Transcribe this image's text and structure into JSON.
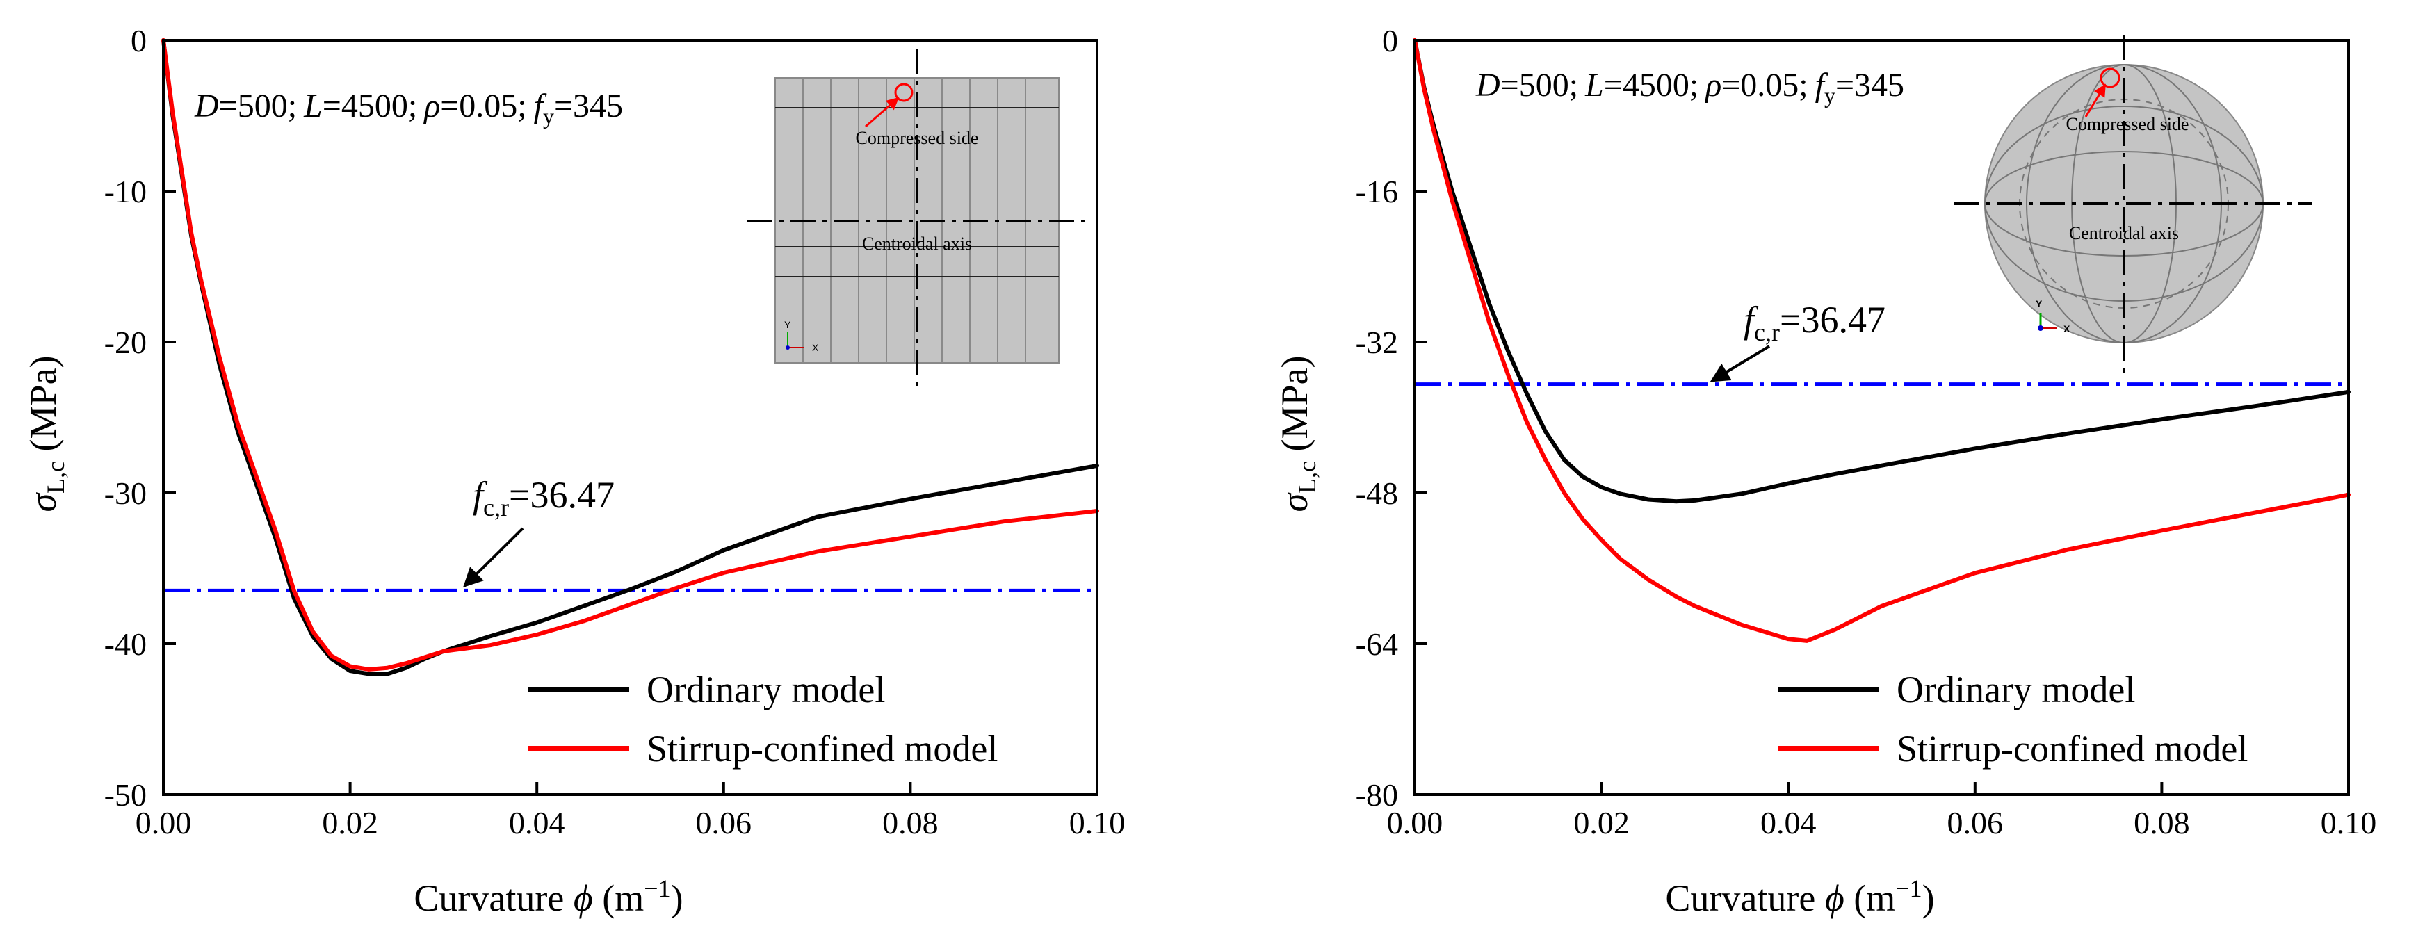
{
  "chart_data": [
    {
      "type": "line",
      "panel": "left",
      "title": "",
      "xlabel": "Curvature ϕ (m⁻¹)",
      "xlabel_parts": {
        "prefix": "Curvature ",
        "symbol": "ϕ",
        "unit_open": " (m",
        "unit_exp": "−1",
        "unit_close": ")"
      },
      "ylabel_parts": {
        "symbol": "σ",
        "subscript": "L,c",
        "unit": " (MPa)"
      },
      "xlim": [
        0,
        0.1
      ],
      "ylim": [
        -50,
        0
      ],
      "x_ticks": [
        0.0,
        0.02,
        0.04,
        0.06,
        0.08,
        0.1
      ],
      "x_tick_labels": [
        "0.00",
        "0.02",
        "0.04",
        "0.06",
        "0.08",
        "0.10"
      ],
      "y_ticks": [
        0,
        -10,
        -20,
        -30,
        -40,
        -50
      ],
      "y_tick_labels": [
        "0",
        "-10",
        "-20",
        "-30",
        "-40",
        "-50"
      ],
      "grid": false,
      "legend_position": "bottom-right",
      "params": {
        "D": "D",
        "D_val": "=500;",
        "L": "L",
        "L_val": "=4500;",
        "rho": "ρ",
        "rho_val": "=0.05;",
        "f": "f",
        "f_sub": "y",
        "f_val": "=345"
      },
      "reference_line": {
        "value": -36.47,
        "color": "#0000ff",
        "label_symbol": "f",
        "label_sub": "c,r",
        "label_val": "=36.47",
        "arrow_to_x": 0.032
      },
      "inset": {
        "kind": "rect",
        "labels": [
          "Compressed side",
          "Centroidal axis"
        ],
        "axis_labels": [
          "Y",
          "X"
        ]
      },
      "series": [
        {
          "name": "Ordinary model",
          "color": "#000000",
          "x": [
            0,
            0.001,
            0.002,
            0.003,
            0.004,
            0.006,
            0.008,
            0.01,
            0.012,
            0.014,
            0.016,
            0.018,
            0.02,
            0.022,
            0.024,
            0.026,
            0.028,
            0.03,
            0.035,
            0.04,
            0.045,
            0.05,
            0.055,
            0.06,
            0.07,
            0.08,
            0.09,
            0.1
          ],
          "y": [
            0,
            -5,
            -9,
            -13,
            -16,
            -21.5,
            -26,
            -29.5,
            -33,
            -37,
            -39.5,
            -41,
            -41.8,
            -42,
            -42,
            -41.6,
            -41,
            -40.5,
            -39.5,
            -38.6,
            -37.5,
            -36.4,
            -35.2,
            -33.8,
            -31.6,
            -30.4,
            -29.3,
            -28.2
          ]
        },
        {
          "name": "Stirrup-confined model",
          "color": "#ff0000",
          "x": [
            0,
            0.001,
            0.002,
            0.003,
            0.004,
            0.006,
            0.008,
            0.01,
            0.012,
            0.014,
            0.016,
            0.018,
            0.02,
            0.022,
            0.024,
            0.026,
            0.028,
            0.03,
            0.035,
            0.04,
            0.045,
            0.05,
            0.055,
            0.06,
            0.07,
            0.08,
            0.09,
            0.1
          ],
          "y": [
            0,
            -4.8,
            -8.8,
            -12.8,
            -15.8,
            -21,
            -25.5,
            -29,
            -32.5,
            -36.5,
            -39.2,
            -40.8,
            -41.5,
            -41.7,
            -41.6,
            -41.3,
            -40.9,
            -40.5,
            -40.1,
            -39.4,
            -38.5,
            -37.4,
            -36.3,
            -35.3,
            -33.9,
            -32.9,
            -31.9,
            -31.2
          ]
        }
      ]
    },
    {
      "type": "line",
      "panel": "right",
      "title": "",
      "xlabel": "Curvature ϕ (m⁻¹)",
      "xlabel_parts": {
        "prefix": "Curvature ",
        "symbol": "ϕ",
        "unit_open": " (m",
        "unit_exp": "−1",
        "unit_close": ")"
      },
      "ylabel_parts": {
        "symbol": "σ",
        "subscript": "L,c",
        "unit": " (MPa)"
      },
      "xlim": [
        0,
        0.1
      ],
      "ylim": [
        -80,
        0
      ],
      "x_ticks": [
        0.0,
        0.02,
        0.04,
        0.06,
        0.08,
        0.1
      ],
      "x_tick_labels": [
        "0.00",
        "0.02",
        "0.04",
        "0.06",
        "0.08",
        "0.10"
      ],
      "y_ticks": [
        0,
        -16,
        -32,
        -48,
        -64,
        -80
      ],
      "y_tick_labels": [
        "0",
        "-16",
        "-32",
        "-48",
        "-64",
        "-80"
      ],
      "grid": false,
      "legend_position": "bottom-right",
      "params": {
        "D": "D",
        "D_val": "=500;",
        "L": "L",
        "L_val": "=4500;",
        "rho": "ρ",
        "rho_val": "=0.05;",
        "f": "f",
        "f_sub": "y",
        "f_val": "=345"
      },
      "reference_line": {
        "value": -36.47,
        "color": "#0000ff",
        "label_symbol": "f",
        "label_sub": "c,r",
        "label_val": "=36.47",
        "arrow_to_x": 0.031
      },
      "inset": {
        "kind": "circle",
        "labels": [
          "Compressed side",
          "Centroidal axis"
        ],
        "axis_labels": [
          "Y",
          "X"
        ]
      },
      "series": [
        {
          "name": "Ordinary model",
          "color": "#000000",
          "x": [
            0,
            0.001,
            0.002,
            0.004,
            0.006,
            0.008,
            0.01,
            0.012,
            0.014,
            0.016,
            0.018,
            0.02,
            0.022,
            0.025,
            0.028,
            0.03,
            0.035,
            0.04,
            0.045,
            0.05,
            0.06,
            0.07,
            0.08,
            0.09,
            0.1
          ],
          "y": [
            0,
            -5,
            -9,
            -16,
            -22,
            -28,
            -33,
            -37.5,
            -41.5,
            -44.5,
            -46.3,
            -47.4,
            -48.1,
            -48.7,
            -48.9,
            -48.8,
            -48.1,
            -47,
            -46,
            -45.1,
            -43.3,
            -41.7,
            -40.2,
            -38.8,
            -37.3
          ]
        },
        {
          "name": "Stirrup-confined model",
          "color": "#ff0000",
          "x": [
            0,
            0.001,
            0.002,
            0.004,
            0.006,
            0.008,
            0.01,
            0.012,
            0.014,
            0.016,
            0.018,
            0.02,
            0.022,
            0.025,
            0.028,
            0.03,
            0.035,
            0.04,
            0.042,
            0.045,
            0.05,
            0.06,
            0.07,
            0.08,
            0.09,
            0.1
          ],
          "y": [
            0,
            -5.2,
            -9.5,
            -17,
            -23.5,
            -30,
            -35.5,
            -40.5,
            -44.5,
            -48,
            -50.8,
            -53,
            -55,
            -57.2,
            -59,
            -60,
            -62,
            -63.5,
            -63.7,
            -62.5,
            -60,
            -56.5,
            -54,
            -52,
            -50.1,
            -48.2
          ]
        }
      ]
    }
  ]
}
